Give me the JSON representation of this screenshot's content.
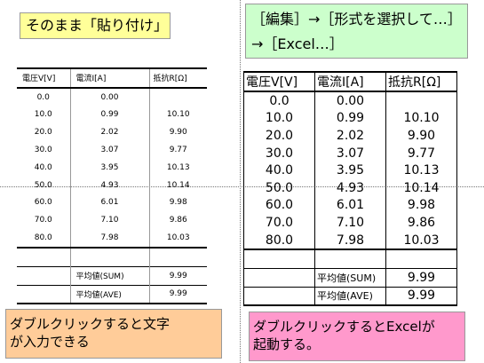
{
  "callouts": {
    "paste": "そのまま「貼り付け」",
    "menu_line1": "［編集］→［形式を選択して…］",
    "menu_line2": "→［Excel…］",
    "double_click_text_line1": "ダブルクリックすると文字",
    "double_click_text_line2": "が入力できる",
    "double_click_excel_line1": "ダブルクリックするとExcelが",
    "double_click_excel_line2": "起動する。"
  },
  "tables": {
    "headers": [
      "電圧V[V]",
      "電流I[A]",
      "抵抗R[Ω]"
    ],
    "rows": [
      [
        "0.0",
        "0.00",
        ""
      ],
      [
        "10.0",
        "0.99",
        "10.10"
      ],
      [
        "20.0",
        "2.02",
        "9.90"
      ],
      [
        "30.0",
        "3.07",
        "9.77"
      ],
      [
        "40.0",
        "3.95",
        "10.13"
      ],
      [
        "50.0",
        "4.93",
        "10.14"
      ],
      [
        "60.0",
        "6.01",
        "9.98"
      ],
      [
        "70.0",
        "7.10",
        "9.86"
      ],
      [
        "80.0",
        "7.98",
        "10.03"
      ]
    ],
    "summary": [
      {
        "label": "平均値(SUM)",
        "value": "9.99"
      },
      {
        "label": "平均値(AVE)",
        "value": "9.99"
      }
    ]
  },
  "colors": {
    "paste_callout": "#ffff99",
    "menu_callout": "#ccffcc",
    "text_callout": "#ffcc99",
    "excel_callout": "#ff99cc"
  }
}
